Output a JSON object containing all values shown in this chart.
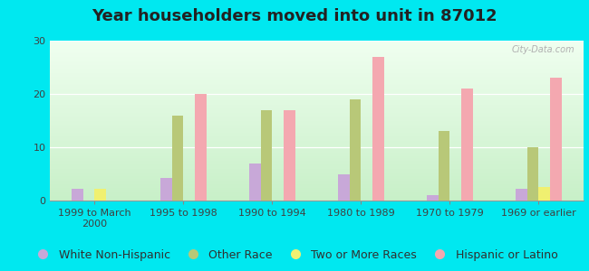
{
  "title": "Year householders moved into unit in 87012",
  "categories": [
    "1999 to March\n2000",
    "1995 to 1998",
    "1990 to 1994",
    "1980 to 1989",
    "1970 to 1979",
    "1969 or earlier"
  ],
  "series": {
    "White Non-Hispanic": [
      2.2,
      4.2,
      7.0,
      5.0,
      1.0,
      2.2
    ],
    "Other Race": [
      0.0,
      16.0,
      17.0,
      19.0,
      13.0,
      10.0
    ],
    "Two or More Races": [
      2.2,
      0.0,
      0.0,
      0.0,
      0.0,
      2.5
    ],
    "Hispanic or Latino": [
      0.0,
      20.0,
      17.0,
      27.0,
      21.0,
      23.0
    ]
  },
  "colors": {
    "White Non-Hispanic": "#c8a8d8",
    "Other Race": "#b8c878",
    "Two or More Races": "#f0f070",
    "Hispanic or Latino": "#f4a8b0"
  },
  "ylim": [
    0,
    30
  ],
  "yticks": [
    0,
    10,
    20,
    30
  ],
  "outer_background": "#00e8f0",
  "bar_width": 0.13,
  "title_fontsize": 13,
  "legend_fontsize": 9,
  "tick_fontsize": 8
}
